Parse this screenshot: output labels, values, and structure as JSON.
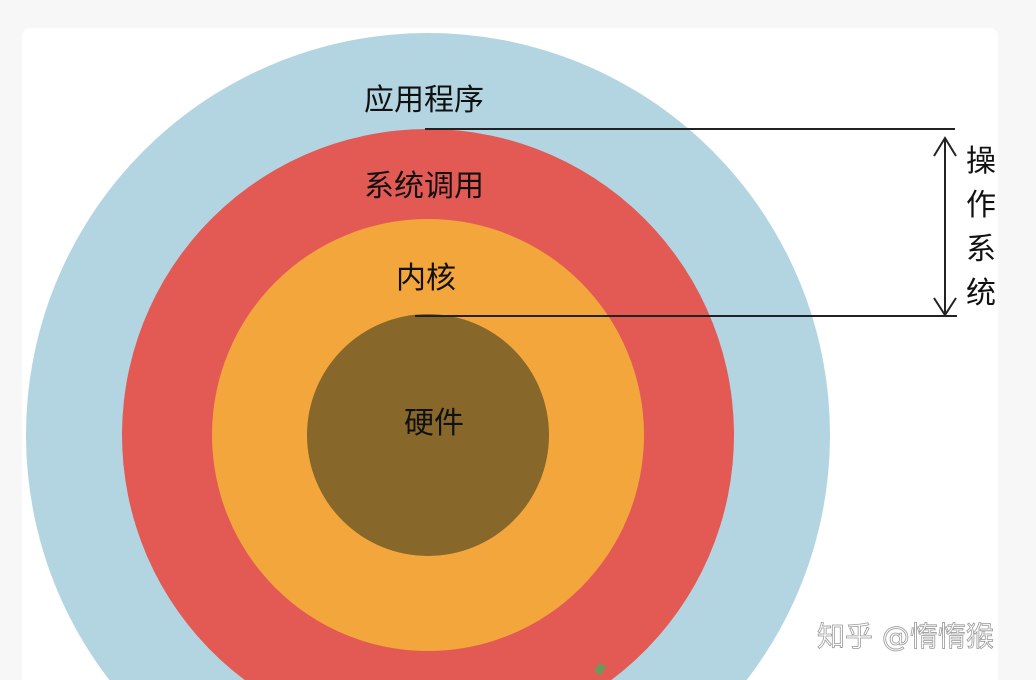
{
  "diagram": {
    "layers": [
      {
        "label": "应用程序",
        "color": "#b3d5e2"
      },
      {
        "label": "系统调用",
        "color": "#e35a55"
      },
      {
        "label": "内核",
        "color": "#f2a63c"
      },
      {
        "label": "硬件",
        "color": "#87672a"
      }
    ],
    "bracket_label": [
      "操",
      "作",
      "系",
      "统"
    ],
    "line_color": "#222222"
  },
  "watermark": "知乎 @惰惰猴"
}
